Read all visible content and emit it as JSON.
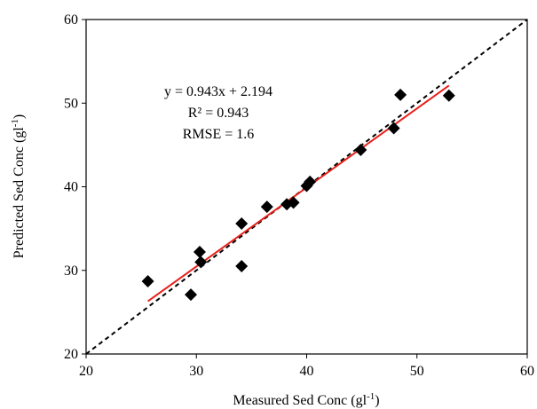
{
  "chart_data": {
    "type": "scatter",
    "x_label": {
      "text": "Measured Sed Conc (gl",
      "sup": "-1",
      "end": ")"
    },
    "y_label": {
      "text": "Predicted Sed Conc (gl",
      "sup": "-1",
      "end": ")"
    },
    "annotations": [
      "y = 0.943x + 2.194",
      "R² = 0.943",
      "RMSE = 1.6"
    ],
    "x": [
      25.6,
      29.5,
      30.3,
      30.4,
      34.1,
      34.1,
      36.4,
      38.2,
      38.8,
      40.0,
      40.3,
      44.9,
      47.9,
      48.5,
      52.9
    ],
    "y": [
      28.7,
      27.1,
      32.2,
      31.0,
      35.6,
      30.5,
      37.6,
      37.9,
      38.1,
      40.1,
      40.6,
      44.4,
      47.0,
      51.0,
      50.9
    ],
    "color": "#000000",
    "fit_line": {
      "x": [
        25.6,
        52.9
      ],
      "y": [
        26.3,
        52.1
      ],
      "color": "#e8201a"
    },
    "identity_line_color": "#000000",
    "xlim": [
      20,
      60
    ],
    "ylim": [
      20,
      60
    ],
    "xticks": [
      20,
      30,
      40,
      50,
      60
    ],
    "yticks": [
      20,
      30,
      40,
      50,
      60
    ]
  }
}
